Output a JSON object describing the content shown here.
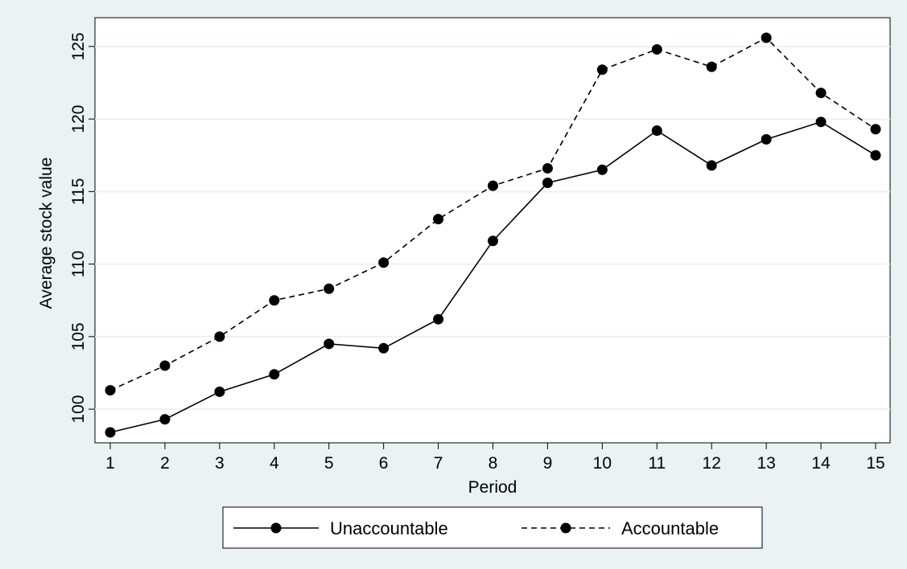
{
  "chart_data": {
    "type": "line",
    "xlabel": "Period",
    "ylabel": "Average stock value",
    "x": [
      1,
      2,
      3,
      4,
      5,
      6,
      7,
      8,
      9,
      10,
      11,
      12,
      13,
      14,
      15
    ],
    "xlim": [
      1,
      15
    ],
    "ylim": [
      98.4,
      125.6
    ],
    "yticks": [
      100,
      105,
      110,
      115,
      120,
      125
    ],
    "grid": true,
    "legend_position": "bottom",
    "series": [
      {
        "name": "Unaccountable",
        "line_style": "solid",
        "values": [
          98.4,
          99.3,
          101.2,
          102.4,
          104.5,
          104.2,
          106.2,
          111.6,
          115.6,
          116.5,
          119.2,
          116.8,
          118.6,
          119.8,
          117.5
        ]
      },
      {
        "name": "Accountable",
        "line_style": "dashed",
        "values": [
          101.3,
          103.0,
          105.0,
          107.5,
          108.3,
          110.1,
          113.1,
          115.4,
          116.6,
          123.4,
          124.8,
          123.6,
          125.6,
          121.8,
          119.3
        ]
      }
    ],
    "colors": {
      "outer_background": "#eaf2f3",
      "plot_background": "#ffffff",
      "gridline": "#eaf2f3",
      "series": "#000000"
    }
  }
}
